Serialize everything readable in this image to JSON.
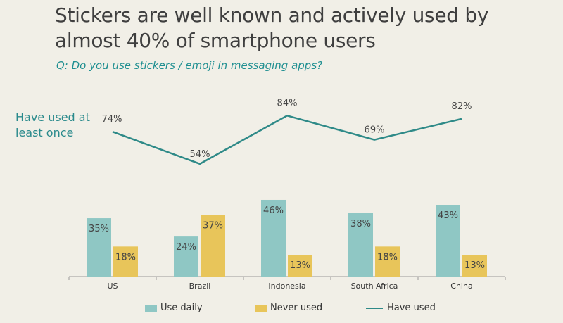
{
  "title": "Stickers are well known and actively used by almost 40% of smartphone users",
  "subtitle": "Q: Do you use stickers / emoji in messaging apps?",
  "line_annotation": "Have used at least once",
  "colors": {
    "use_daily": "#8fc7c4",
    "never_used": "#e8c55a",
    "have_used": "#2f8a88",
    "axis": "#9a9a9a"
  },
  "chart_data": {
    "type": "bar",
    "categories": [
      "US",
      "Brazil",
      "Indonesia",
      "South Africa",
      "China"
    ],
    "series": [
      {
        "name": "Use daily",
        "kind": "bar",
        "values": [
          35,
          24,
          46,
          38,
          43
        ],
        "labels": [
          "35%",
          "24%",
          "46%",
          "38%",
          "43%"
        ]
      },
      {
        "name": "Never used",
        "kind": "bar",
        "values": [
          18,
          37,
          13,
          18,
          13
        ],
        "labels": [
          "18%",
          "37%",
          "13%",
          "18%",
          "13%"
        ]
      },
      {
        "name": "Have used",
        "kind": "line",
        "values": [
          74,
          54,
          84,
          69,
          82
        ],
        "labels": [
          "74%",
          "54%",
          "84%",
          "69%",
          "82%"
        ]
      }
    ],
    "legend": [
      "Use daily",
      "Never used",
      "Have used"
    ],
    "ylim_bars": [
      0,
      50
    ],
    "ylim_line": [
      50,
      85
    ]
  }
}
